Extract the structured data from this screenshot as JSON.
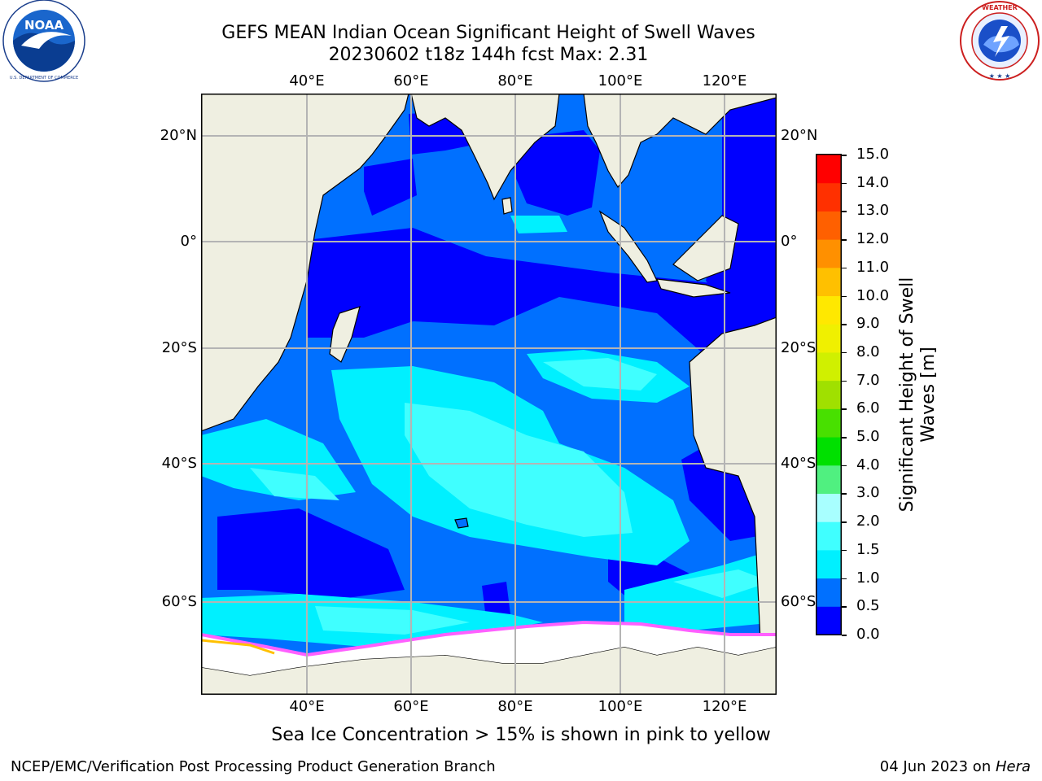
{
  "title": {
    "line1": "GEFS MEAN Indian Ocean Significant Height of Swell Waves",
    "line2": "20230602 t18z 144h fcst   Max: 2.31"
  },
  "logos": {
    "left": {
      "text": "NOAA",
      "ring_text": "NATIONAL OCEANIC AND ATMOSPHERIC ADMINISTRATION · U.S. DEPARTMENT OF COMMERCE"
    },
    "right": {
      "ring_text": "NATIONAL WEATHER SERVICE"
    }
  },
  "map": {
    "lon_labels": [
      "40°E",
      "60°E",
      "80°E",
      "100°E",
      "120°E"
    ],
    "lat_labels": [
      "20°N",
      "0°",
      "20°S",
      "40°S",
      "60°S"
    ],
    "colors": {
      "land": "#efefe1",
      "ice": "#ffffff",
      "grid": "#b4b4b4"
    }
  },
  "colorbar": {
    "label_line1": "Significant Height of Swell",
    "label_line2": "Waves [m]",
    "ticks": [
      "0.0",
      "0.5",
      "1.0",
      "1.5",
      "2.0",
      "3.0",
      "4.0",
      "5.0",
      "6.0",
      "7.0",
      "8.0",
      "9.0",
      "10.0",
      "11.0",
      "12.0",
      "13.0",
      "14.0",
      "15.0"
    ],
    "colors": [
      "#0000ff",
      "#0070ff",
      "#00f0ff",
      "#40ffff",
      "#a8ffff",
      "#50f080",
      "#00e000",
      "#48e000",
      "#a0e000",
      "#d0f000",
      "#f0f000",
      "#ffe800",
      "#ffc000",
      "#ff9000",
      "#ff6000",
      "#ff3000",
      "#ff0000"
    ]
  },
  "caption": "Sea Ice Concentration > 15% is shown in pink to yellow",
  "footer": {
    "left": "NCEP/EMC/Verification Post Processing Product Generation Branch",
    "right_prefix": "04 Jun 2023 on ",
    "right_host": "Hera"
  }
}
